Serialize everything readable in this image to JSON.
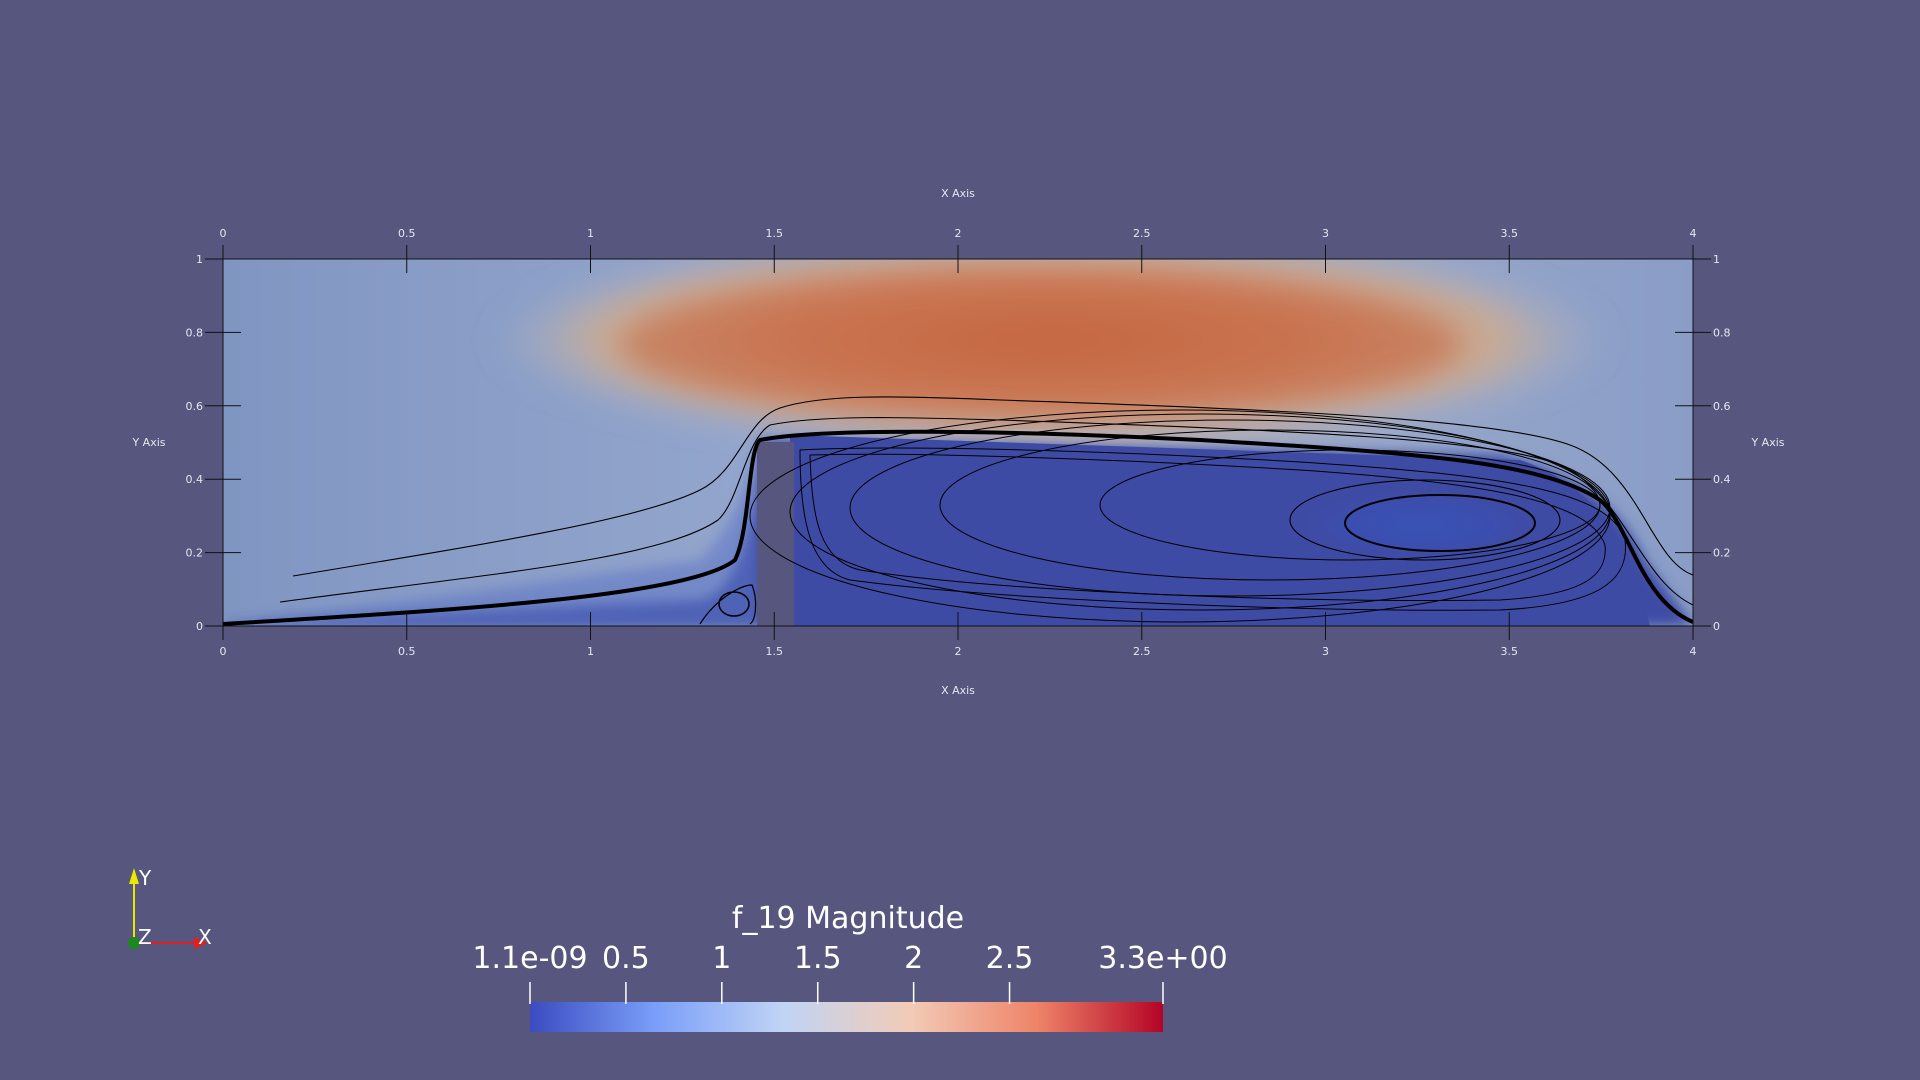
{
  "scene": {
    "background": "#57567f",
    "field_name": "f_19 Magnitude"
  },
  "axes_grid": {
    "x_title": "X Axis",
    "y_title": "Y Axis",
    "x_ticks": [
      "0",
      "0.5",
      "1",
      "1.5",
      "2",
      "2.5",
      "3",
      "3.5",
      "4"
    ],
    "y_ticks": [
      "0",
      "0.2",
      "0.4",
      "0.6",
      "0.8",
      "1"
    ],
    "x_range": [
      0,
      4
    ],
    "y_range": [
      0,
      1
    ]
  },
  "obstacle": {
    "x_range": [
      1.45,
      1.55
    ],
    "y_top": 0.5
  },
  "color_bar": {
    "title": "f_19 Magnitude",
    "min": 1.1e-09,
    "max": 3.3,
    "min_label": "1.1e-09",
    "max_label": "3.3e+00",
    "tick_labels": [
      "0.5",
      "1",
      "1.5",
      "2",
      "2.5"
    ],
    "colormap": [
      "#3b4cc0",
      "#7b9ff9",
      "#c0d4f5",
      "#f2cbb7",
      "#ee8468",
      "#b40426"
    ]
  },
  "orientation_axes": {
    "y_label": "Y",
    "z_label": "Z",
    "x_label": "X",
    "y_color": "#e8e800",
    "x_color": "#e02020",
    "z_color": "#1a8a1a"
  }
}
